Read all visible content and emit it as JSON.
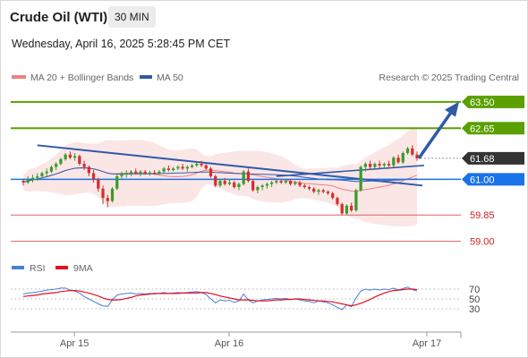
{
  "header": {
    "title": "Crude Oil (WTI)",
    "timeframe": "30 MIN",
    "datetime": "Wednesday, April 16, 2025 5:28:45 PM CET"
  },
  "legend": {
    "ma20_label": "MA 20 + Bollinger Bands",
    "ma20_color": "#f08080",
    "ma50_label": "MA 50",
    "ma50_color": "#2e5aa8",
    "copyright": "Research © 2025 Trading Central"
  },
  "rsi_legend": {
    "rsi_label": "RSI",
    "rsi_color": "#4a7fd8",
    "ma9_label": "9MA",
    "ma9_color": "#e01020"
  },
  "chart_data": [
    {
      "type": "candlestick",
      "title": "Crude Oil (WTI)",
      "timeframe": "30 MIN",
      "x_ticks": [
        "Apr 15",
        "Apr 16",
        "Apr 17"
      ],
      "levels": [
        {
          "value": 63.5,
          "label": "63.50",
          "kind": "resistance",
          "color": "#5aa000"
        },
        {
          "value": 62.65,
          "label": "62.65",
          "kind": "resistance",
          "color": "#5aa000"
        },
        {
          "value": 61.68,
          "label": "61.68",
          "kind": "last-price",
          "color": "#333333"
        },
        {
          "value": 61.0,
          "label": "61.00",
          "kind": "pivot",
          "color": "#1a73e8"
        },
        {
          "value": 59.85,
          "label": "59.85",
          "kind": "support",
          "color": "#e06060"
        },
        {
          "value": 59.0,
          "label": "59.00",
          "kind": "support",
          "color": "#e06060"
        }
      ],
      "ylim": [
        58.7,
        63.9
      ],
      "grid": false,
      "up_color": "#3a9c2a",
      "down_color": "#d03030",
      "candles": [
        [
          60.95,
          61.0,
          60.8,
          60.9
        ],
        [
          60.9,
          61.1,
          60.85,
          61.0
        ],
        [
          61.0,
          61.15,
          60.9,
          61.05
        ],
        [
          61.05,
          61.2,
          60.95,
          61.1
        ],
        [
          61.1,
          61.25,
          61.0,
          61.2
        ],
        [
          61.2,
          61.35,
          61.1,
          61.25
        ],
        [
          61.25,
          61.45,
          61.2,
          61.4
        ],
        [
          61.4,
          61.55,
          61.3,
          61.5
        ],
        [
          61.5,
          61.7,
          61.45,
          61.65
        ],
        [
          61.65,
          61.85,
          61.6,
          61.8
        ],
        [
          61.8,
          61.9,
          61.65,
          61.7
        ],
        [
          61.7,
          61.85,
          61.6,
          61.75
        ],
        [
          61.75,
          61.8,
          61.45,
          61.5
        ],
        [
          61.5,
          61.6,
          61.3,
          61.4
        ],
        [
          61.4,
          61.45,
          61.1,
          61.2
        ],
        [
          61.2,
          61.3,
          60.9,
          61.0
        ],
        [
          61.0,
          61.05,
          60.6,
          60.7
        ],
        [
          60.7,
          60.8,
          60.2,
          60.4
        ],
        [
          60.4,
          60.5,
          60.1,
          60.3
        ],
        [
          60.3,
          60.75,
          60.25,
          60.7
        ],
        [
          60.7,
          61.15,
          60.65,
          61.1
        ],
        [
          61.1,
          61.25,
          61.0,
          61.15
        ],
        [
          61.15,
          61.3,
          61.05,
          61.2
        ],
        [
          61.2,
          61.3,
          61.1,
          61.25
        ],
        [
          61.25,
          61.35,
          61.15,
          61.2
        ],
        [
          61.2,
          61.3,
          61.1,
          61.25
        ],
        [
          61.25,
          61.3,
          61.15,
          61.2
        ],
        [
          61.2,
          61.28,
          61.12,
          61.22
        ],
        [
          61.22,
          61.3,
          61.15,
          61.2
        ],
        [
          61.2,
          61.3,
          61.15,
          61.25
        ],
        [
          61.25,
          61.4,
          61.2,
          61.35
        ],
        [
          61.35,
          61.45,
          61.25,
          61.3
        ],
        [
          61.3,
          61.4,
          61.25,
          61.35
        ],
        [
          61.35,
          61.45,
          61.3,
          61.4
        ],
        [
          61.4,
          61.5,
          61.3,
          61.35
        ],
        [
          61.35,
          61.45,
          61.25,
          61.4
        ],
        [
          61.4,
          61.5,
          61.35,
          61.45
        ],
        [
          61.45,
          61.55,
          61.4,
          61.5
        ],
        [
          61.5,
          61.6,
          61.4,
          61.45
        ],
        [
          61.45,
          61.5,
          61.3,
          61.35
        ],
        [
          61.35,
          61.4,
          61.05,
          61.1
        ],
        [
          61.1,
          61.15,
          60.75,
          60.8
        ],
        [
          60.8,
          61.0,
          60.75,
          60.95
        ],
        [
          60.95,
          61.05,
          60.8,
          60.85
        ],
        [
          60.85,
          61.0,
          60.8,
          60.9
        ],
        [
          60.9,
          60.95,
          60.7,
          60.75
        ],
        [
          60.75,
          60.9,
          60.65,
          60.85
        ],
        [
          60.85,
          61.3,
          60.8,
          61.25
        ],
        [
          61.25,
          61.35,
          60.9,
          60.95
        ],
        [
          60.95,
          61.0,
          60.6,
          60.65
        ],
        [
          60.65,
          60.8,
          60.55,
          60.75
        ],
        [
          60.75,
          60.85,
          60.65,
          60.8
        ],
        [
          60.8,
          60.9,
          60.7,
          60.85
        ],
        [
          60.85,
          60.95,
          60.75,
          60.9
        ],
        [
          60.9,
          61.0,
          60.85,
          60.95
        ],
        [
          60.95,
          61.0,
          60.85,
          60.9
        ],
        [
          60.9,
          61.0,
          60.85,
          60.95
        ],
        [
          60.95,
          61.0,
          60.8,
          60.85
        ],
        [
          60.85,
          60.95,
          60.8,
          60.9
        ],
        [
          60.9,
          60.95,
          60.75,
          60.8
        ],
        [
          60.8,
          60.85,
          60.7,
          60.75
        ],
        [
          60.75,
          60.8,
          60.65,
          60.7
        ],
        [
          60.7,
          60.75,
          60.55,
          60.6
        ],
        [
          60.6,
          60.7,
          60.5,
          60.65
        ],
        [
          60.65,
          60.7,
          60.55,
          60.6
        ],
        [
          60.6,
          60.65,
          60.5,
          60.55
        ],
        [
          60.55,
          60.6,
          60.35,
          60.4
        ],
        [
          60.4,
          60.45,
          60.15,
          60.2
        ],
        [
          60.2,
          60.25,
          59.85,
          59.9
        ],
        [
          59.9,
          60.2,
          59.85,
          60.15
        ],
        [
          60.15,
          60.25,
          59.95,
          60.0
        ],
        [
          60.0,
          60.7,
          59.95,
          60.65
        ],
        [
          60.65,
          61.45,
          60.6,
          61.4
        ],
        [
          61.4,
          61.55,
          61.25,
          61.5
        ],
        [
          61.5,
          61.6,
          61.3,
          61.4
        ],
        [
          61.4,
          61.55,
          61.35,
          61.5
        ],
        [
          61.5,
          61.6,
          61.35,
          61.45
        ],
        [
          61.45,
          61.55,
          61.35,
          61.5
        ],
        [
          61.5,
          61.6,
          61.4,
          61.45
        ],
        [
          61.45,
          61.75,
          61.4,
          61.7
        ],
        [
          61.7,
          61.8,
          61.5,
          61.55
        ],
        [
          61.55,
          61.9,
          61.5,
          61.85
        ],
        [
          61.85,
          62.05,
          61.8,
          62.0
        ],
        [
          62.0,
          62.1,
          61.75,
          61.8
        ],
        [
          61.8,
          61.9,
          61.6,
          61.68
        ]
      ]
    },
    {
      "type": "line",
      "title": "RSI",
      "x_ticks": [
        "Apr 15",
        "Apr 16",
        "Apr 17"
      ],
      "y_ticks": [
        70,
        50,
        30
      ],
      "ylim": [
        10,
        90
      ],
      "series": [
        {
          "name": "RSI",
          "color": "#4a7fd8",
          "values": [
            60,
            62,
            63,
            64,
            66,
            68,
            69,
            70,
            72,
            72,
            68,
            66,
            62,
            55,
            50,
            45,
            40,
            36,
            35,
            48,
            58,
            60,
            61,
            62,
            60,
            61,
            60,
            61,
            60,
            61,
            63,
            61,
            62,
            63,
            62,
            63,
            64,
            65,
            63,
            59,
            50,
            42,
            48,
            46,
            47,
            43,
            46,
            60,
            48,
            42,
            46,
            48,
            49,
            50,
            51,
            50,
            51,
            49,
            50,
            48,
            46,
            45,
            42,
            46,
            44,
            42,
            38,
            33,
            28,
            38,
            34,
            52,
            66,
            70,
            68,
            70,
            68,
            70,
            69,
            72,
            68,
            71,
            74,
            69,
            66
          ]
        },
        {
          "name": "9MA",
          "color": "#e01020",
          "values": [
            55,
            56,
            57,
            58,
            60,
            61,
            62,
            63,
            65,
            66,
            67,
            67,
            66,
            64,
            62,
            59,
            56,
            52,
            49,
            48,
            48,
            49,
            51,
            53,
            56,
            58,
            59,
            60,
            61,
            61,
            61,
            61,
            61,
            61,
            62,
            62,
            62,
            62,
            63,
            63,
            61,
            59,
            56,
            54,
            52,
            50,
            48,
            48,
            48,
            47,
            46,
            46,
            46,
            47,
            48,
            48,
            49,
            49,
            50,
            50,
            49,
            48,
            47,
            46,
            46,
            45,
            44,
            42,
            40,
            38,
            36,
            38,
            41,
            45,
            49,
            54,
            58,
            62,
            65,
            67,
            68,
            69,
            70,
            70,
            69
          ]
        }
      ]
    }
  ]
}
